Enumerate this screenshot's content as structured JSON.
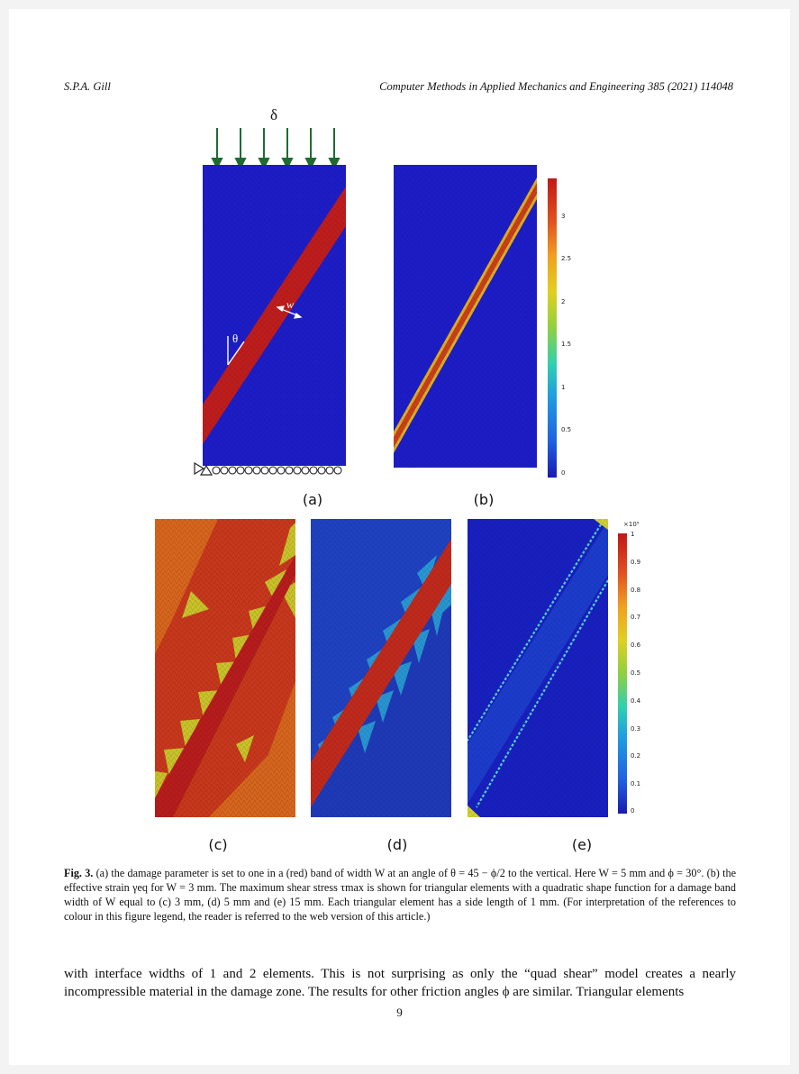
{
  "header": {
    "author": "S.P.A. Gill",
    "journal": "Computer Methods in Applied Mechanics and Engineering 385 (2021) 114048"
  },
  "figure": {
    "load_label": "δ",
    "width_label": "w",
    "angle_label": "θ",
    "panel_labels": [
      "(a)",
      "(b)",
      "(c)",
      "(d)",
      "(e)"
    ],
    "colorbar_b": {
      "ticks": [
        "3",
        "2.5",
        "2",
        "1.5",
        "1",
        "0.5",
        "0"
      ]
    },
    "colorbar_e": {
      "multiplier": "×10⁵",
      "ticks": [
        "1",
        "0.9",
        "0.8",
        "0.7",
        "0.6",
        "0.5",
        "0.4",
        "0.3",
        "0.2",
        "0.1",
        "0"
      ]
    },
    "colors": {
      "field_low": "#1d1dc8",
      "field_high": "#bf1d1d",
      "arrow": "#1f6b33"
    }
  },
  "caption": {
    "label": "Fig. 3.",
    "text": "(a) the damage parameter is set to one in a (red) band of width W at an angle of θ = 45 − ϕ/2 to the vertical. Here W = 5 mm and ϕ = 30°. (b) the effective strain γeq for W = 3 mm. The maximum shear stress τmax is shown for triangular elements with a quadratic shape function for a damage band width of W equal to (c) 3 mm, (d) 5 mm and (e) 15 mm. Each triangular element has a side length of 1 mm. (For interpretation of the references to colour in this figure legend, the reader is referred to the web version of this article.)"
  },
  "body": {
    "text": "with interface widths of 1 and 2 elements. This is not surprising as only the “quad shear” model creates a nearly incompressible material in the damage zone. The results for other friction angles ϕ are similar. Triangular elements"
  },
  "page_number": "9"
}
